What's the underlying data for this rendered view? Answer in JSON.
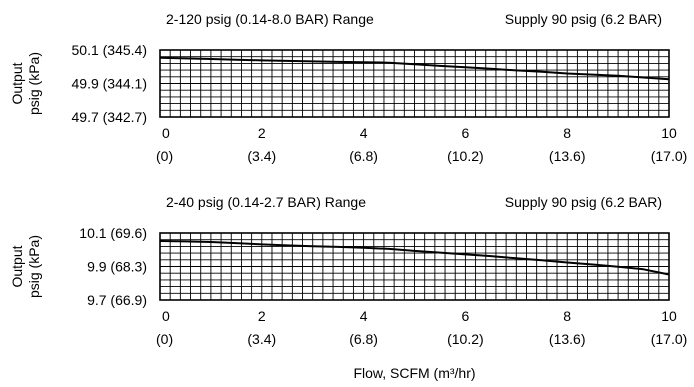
{
  "chart_data": [
    {
      "type": "line",
      "title": "2-120 psig (0.14-8.0 BAR) Range",
      "subtitle": "Supply 90 psig (6.2 BAR)",
      "ylabel": [
        "Output",
        "psig (kPa)"
      ],
      "xlabel": "",
      "xlim": [
        0,
        10
      ],
      "ylim": [
        49.7,
        50.1
      ],
      "x_ticks": [
        0,
        2,
        4,
        6,
        8,
        10
      ],
      "x_tick_labels": [
        "0",
        "2",
        "4",
        "6",
        "8",
        "10"
      ],
      "x_tick_sublabels": [
        "(0)",
        "(3.4)",
        "(6.8)",
        "(10.2)",
        "(13.6)",
        "(17.0)"
      ],
      "y_ticks": [
        50.1,
        49.9,
        49.7
      ],
      "y_tick_labels": [
        "50.1 (345.4)",
        "49.9 (344.1)",
        "49.7 (342.7)"
      ],
      "grid": true,
      "series": [
        {
          "x": [
            0,
            0.5,
            1,
            1.5,
            2,
            2.5,
            3,
            3.5,
            4,
            4.5,
            5,
            5.5,
            6,
            6.5,
            7,
            7.5,
            8,
            8.5,
            9,
            9.5,
            10
          ],
          "y": [
            50.054,
            50.05,
            50.046,
            50.042,
            50.038,
            50.035,
            50.032,
            50.029,
            50.027,
            50.024,
            50.015,
            50.005,
            49.997,
            49.988,
            49.978,
            49.97,
            49.96,
            49.953,
            49.946,
            49.936,
            49.925
          ]
        }
      ]
    },
    {
      "type": "line",
      "title": "2-40 psig (0.14-2.7 BAR) Range",
      "subtitle": "Supply 90 psig (6.2 BAR)",
      "ylabel": [
        "Output",
        "psig (kPa)"
      ],
      "xlabel": "Flow, SCFM (m³/hr)",
      "xlim": [
        0,
        10
      ],
      "ylim": [
        9.7,
        10.1
      ],
      "x_ticks": [
        0,
        2,
        4,
        6,
        8,
        10
      ],
      "x_tick_labels": [
        "0",
        "2",
        "4",
        "6",
        "8",
        "10"
      ],
      "x_tick_sublabels": [
        "(0)",
        "(3.4)",
        "(6.8)",
        "(10.2)",
        "(13.6)",
        "(17.0)"
      ],
      "y_ticks": [
        10.1,
        9.9,
        9.7
      ],
      "y_tick_labels": [
        "10.1 (69.6)",
        "9.9 (68.3)",
        "9.7 (66.9)"
      ],
      "grid": true,
      "series": [
        {
          "x": [
            0,
            0.5,
            1,
            1.5,
            2,
            2.5,
            3,
            3.5,
            4,
            4.5,
            5,
            5.5,
            6,
            6.5,
            7,
            7.5,
            8,
            8.5,
            9,
            9.5,
            10
          ],
          "y": [
            10.052,
            10.05,
            10.046,
            10.04,
            10.032,
            10.026,
            10.021,
            10.017,
            10.012,
            10.005,
            9.993,
            9.983,
            9.972,
            9.962,
            9.949,
            9.937,
            9.924,
            9.912,
            9.899,
            9.883,
            9.852
          ]
        }
      ]
    }
  ]
}
